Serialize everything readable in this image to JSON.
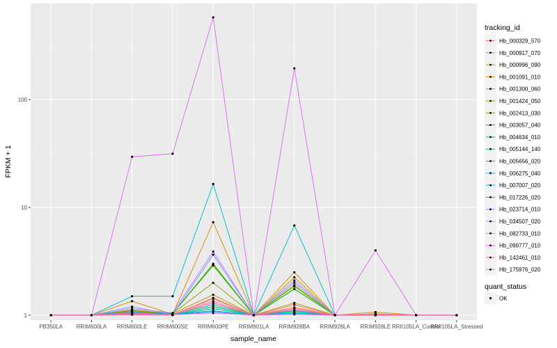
{
  "chart_data": {
    "type": "line",
    "title": "",
    "xlabel": "sample_name",
    "ylabel": "FPKM + 1",
    "y_scale": "log10",
    "ylim": [
      0.9,
      780
    ],
    "y_ticks": [
      {
        "value": 1,
        "label": "1"
      },
      {
        "value": 10,
        "label": "10"
      },
      {
        "value": 100,
        "label": "100"
      }
    ],
    "grid": true,
    "legend_position": "right",
    "legend_title": "tracking_id",
    "legend2_title": "quant_status",
    "legend2_items": [
      "OK"
    ],
    "categories": [
      "PB350LA",
      "RRIM600LA",
      "RRIM600LE",
      "RRIM600SE",
      "RRIM600PE",
      "RRIM901LA",
      "RRIM928BA",
      "RRIM928LA",
      "RRIM928LE",
      "RRII105LA_Control",
      "RRII105LA_Stressed"
    ],
    "series": [
      {
        "name": "Hb_000329_570",
        "color": "#F8766D",
        "values": [
          1,
          1,
          1.08,
          1.02,
          1.35,
          1,
          1.25,
          1,
          1.02,
          1,
          1
        ]
      },
      {
        "name": "Hb_000917_070",
        "color": "#EC8239",
        "values": [
          1,
          1,
          1.05,
          1.01,
          1.42,
          1,
          1.18,
          1,
          1.01,
          1,
          1
        ]
      },
      {
        "name": "Hb_000996_090",
        "color": "#DB8E00",
        "values": [
          1,
          1,
          1.35,
          1.02,
          7.3,
          1,
          2.5,
          1,
          1.07,
          1,
          1
        ]
      },
      {
        "name": "Hb_001091_010",
        "color": "#C79800",
        "values": [
          1,
          1,
          1.12,
          1.03,
          2.95,
          1,
          2.25,
          1,
          1.03,
          1,
          1
        ]
      },
      {
        "name": "Hb_001300_060",
        "color": "#AEA200",
        "values": [
          1,
          1,
          1.08,
          1.03,
          1.55,
          1,
          1.3,
          1,
          1.02,
          1,
          1
        ]
      },
      {
        "name": "Hb_001424_050",
        "color": "#8FAA00",
        "values": [
          1,
          1,
          1.1,
          1.04,
          2.0,
          1,
          1.85,
          1,
          1.01,
          1,
          1
        ]
      },
      {
        "name": "Hb_002413_030",
        "color": "#64B200",
        "values": [
          1,
          1,
          1.1,
          1.03,
          3.0,
          1,
          1.9,
          1,
          1.01,
          1,
          1
        ]
      },
      {
        "name": "Hb_003057_040",
        "color": "#00B81B",
        "values": [
          1,
          1,
          1.06,
          1.04,
          2.9,
          1,
          1.75,
          1,
          1.01,
          1,
          1
        ]
      },
      {
        "name": "Hb_004634_010",
        "color": "#00BD5C",
        "values": [
          1,
          1,
          1.03,
          1.01,
          1.2,
          1,
          1.08,
          1,
          1.0,
          1,
          1
        ]
      },
      {
        "name": "Hb_005144_140",
        "color": "#00C08E",
        "values": [
          1,
          1,
          1.02,
          1.01,
          1.15,
          1,
          1.05,
          1,
          1.0,
          1,
          1
        ]
      },
      {
        "name": "Hb_005656_020",
        "color": "#00C1B7",
        "values": [
          1,
          1,
          1.04,
          1.02,
          1.25,
          1,
          1.1,
          1,
          1.0,
          1,
          1
        ]
      },
      {
        "name": "Hb_006275_040",
        "color": "#00BDDC",
        "values": [
          1,
          1,
          1.5,
          1.5,
          16.5,
          1,
          6.8,
          1,
          1.01,
          1,
          1
        ]
      },
      {
        "name": "Hb_007007_020",
        "color": "#00B4EF",
        "values": [
          1,
          1,
          1.07,
          1.02,
          1.1,
          1,
          1.05,
          1,
          1.0,
          1,
          1
        ]
      },
      {
        "name": "Hb_017226_020",
        "color": "#00A5FF",
        "values": [
          1,
          1,
          1.02,
          1.01,
          1.08,
          1,
          1.03,
          1,
          1.0,
          1,
          1
        ]
      },
      {
        "name": "Hb_023714_010",
        "color": "#7F96FF",
        "values": [
          1,
          1,
          1.2,
          1.01,
          3.65,
          1,
          2.0,
          1,
          1.02,
          1,
          1
        ]
      },
      {
        "name": "Hb_034507_020",
        "color": "#BC81FF",
        "values": [
          1,
          1,
          1.15,
          1.05,
          3.9,
          1,
          2.1,
          1,
          1.02,
          1,
          1
        ]
      },
      {
        "name": "Hb_082733_010",
        "color": "#E26EF7",
        "values": [
          1,
          1,
          29.5,
          31.5,
          580,
          1,
          195,
          1,
          4.0,
          1,
          1
        ]
      },
      {
        "name": "Hb_099777_010",
        "color": "#F763E0",
        "values": [
          1,
          1,
          1.05,
          1.01,
          1.05,
          1,
          1.02,
          1,
          1.0,
          1,
          1
        ]
      },
      {
        "name": "Hb_142461_010",
        "color": "#FF62BC",
        "values": [
          1,
          1,
          1.03,
          1.01,
          1.3,
          1,
          1.12,
          1,
          1.01,
          1,
          1
        ]
      },
      {
        "name": "Hb_175976_020",
        "color": "#FF6A98",
        "values": [
          1,
          1,
          1.01,
          1.0,
          1.45,
          1,
          1.15,
          1,
          1.0,
          1,
          1
        ]
      }
    ]
  }
}
